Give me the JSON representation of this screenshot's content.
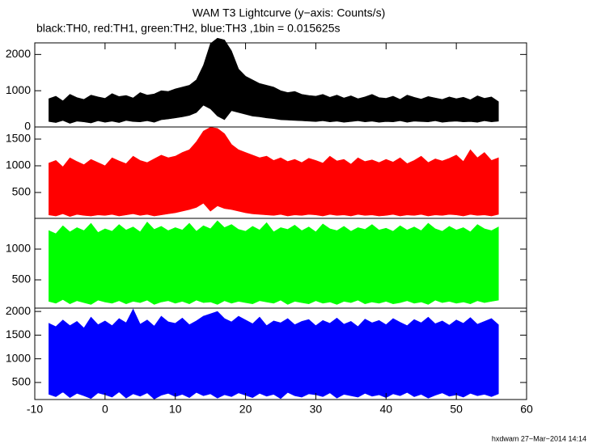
{
  "chart_data": [
    {
      "type": "band",
      "title": "WAM T3 Lightcurve (y−axis: Counts/s)",
      "subtitle": "black:TH0, red:TH1, green:TH2, blue:TH3 ,1bin = 0.015625s",
      "color": "#000000",
      "ylim": [
        0,
        2320
      ],
      "yticks": [
        0,
        1000,
        2000
      ],
      "x": [
        -8,
        -7,
        -6,
        -5,
        -4,
        -3,
        -2,
        -1,
        0,
        1,
        2,
        3,
        4,
        5,
        6,
        7,
        8,
        9,
        10,
        11,
        12,
        13,
        14,
        15,
        16,
        17,
        18,
        19,
        20,
        21,
        22,
        23,
        24,
        25,
        26,
        27,
        28,
        29,
        30,
        31,
        32,
        33,
        34,
        35,
        36,
        37,
        38,
        39,
        40,
        41,
        42,
        43,
        44,
        45,
        46,
        47,
        48,
        49,
        50,
        51,
        52,
        53,
        54,
        55,
        56
      ],
      "high": [
        780,
        850,
        720,
        900,
        810,
        760,
        880,
        830,
        790,
        920,
        840,
        870,
        800,
        950,
        880,
        910,
        1000,
        980,
        1050,
        1100,
        1150,
        1300,
        1700,
        2300,
        2450,
        2400,
        2100,
        1600,
        1400,
        1300,
        1200,
        1150,
        1100,
        1000,
        950,
        980,
        900,
        870,
        850,
        900,
        820,
        880,
        800,
        860,
        780,
        830,
        900,
        810,
        790,
        850,
        760,
        880,
        820,
        770,
        840,
        800,
        760,
        830,
        780,
        820,
        750,
        860,
        790,
        830,
        700
      ],
      "low": [
        150,
        120,
        180,
        100,
        160,
        140,
        110,
        170,
        130,
        160,
        120,
        180,
        150,
        140,
        170,
        130,
        200,
        220,
        250,
        280,
        320,
        400,
        600,
        500,
        300,
        200,
        450,
        400,
        350,
        300,
        280,
        250,
        230,
        200,
        190,
        180,
        170,
        160,
        150,
        170,
        140,
        160,
        130,
        150,
        170,
        140,
        160,
        130,
        150,
        140,
        170,
        130,
        160,
        150,
        140,
        170,
        130,
        150,
        160,
        140,
        150,
        130,
        170,
        140,
        160
      ]
    },
    {
      "type": "band",
      "color": "#ff0000",
      "ylim": [
        15,
        1727
      ],
      "yticks": [
        500,
        1000,
        1500
      ],
      "x": [
        -8,
        -7,
        -6,
        -5,
        -4,
        -3,
        -2,
        -1,
        0,
        1,
        2,
        3,
        4,
        5,
        6,
        7,
        8,
        9,
        10,
        11,
        12,
        13,
        14,
        15,
        16,
        17,
        18,
        19,
        20,
        21,
        22,
        23,
        24,
        25,
        26,
        27,
        28,
        29,
        30,
        31,
        32,
        33,
        34,
        35,
        36,
        37,
        38,
        39,
        40,
        41,
        42,
        43,
        44,
        45,
        46,
        47,
        48,
        49,
        50,
        51,
        52,
        53,
        54,
        55,
        56
      ],
      "high": [
        1050,
        1100,
        980,
        1150,
        1080,
        1020,
        1120,
        1060,
        1000,
        1150,
        1090,
        1040,
        1180,
        1100,
        1060,
        1130,
        1200,
        1150,
        1180,
        1250,
        1300,
        1450,
        1650,
        1720,
        1700,
        1600,
        1400,
        1300,
        1250,
        1200,
        1150,
        1180,
        1100,
        1150,
        1080,
        1120,
        1060,
        1140,
        1100,
        1050,
        1180,
        1090,
        1120,
        1030,
        1150,
        1080,
        1110,
        1060,
        1120,
        1070,
        1150,
        1040,
        1100,
        1180,
        1060,
        1130,
        1090,
        1140,
        1200,
        1080,
        1300,
        1150,
        1250,
        1100,
        1150
      ],
      "low": [
        80,
        60,
        100,
        50,
        90,
        70,
        60,
        80,
        70,
        90,
        60,
        80,
        100,
        70,
        90,
        60,
        80,
        100,
        120,
        150,
        180,
        220,
        300,
        150,
        250,
        200,
        180,
        150,
        120,
        100,
        90,
        80,
        70,
        90,
        60,
        80,
        70,
        90,
        80,
        60,
        90,
        70,
        80,
        60,
        90,
        70,
        80,
        60,
        70,
        90,
        60,
        80,
        70,
        90,
        60,
        80,
        70,
        90,
        80,
        60,
        90,
        70,
        80,
        60,
        90
      ]
    },
    {
      "type": "band",
      "color": "#00ff00",
      "ylim": [
        40,
        1500
      ],
      "yticks": [
        500,
        1000
      ],
      "x": [
        -8,
        -7,
        -6,
        -5,
        -4,
        -3,
        -2,
        -1,
        0,
        1,
        2,
        3,
        4,
        5,
        6,
        7,
        8,
        9,
        10,
        11,
        12,
        13,
        14,
        15,
        16,
        17,
        18,
        19,
        20,
        21,
        22,
        23,
        24,
        25,
        26,
        27,
        28,
        29,
        30,
        31,
        32,
        33,
        34,
        35,
        36,
        37,
        38,
        39,
        40,
        41,
        42,
        43,
        44,
        45,
        46,
        47,
        48,
        49,
        50,
        51,
        52,
        53,
        54,
        55,
        56
      ],
      "high": [
        1300,
        1250,
        1380,
        1280,
        1350,
        1300,
        1420,
        1270,
        1330,
        1290,
        1400,
        1310,
        1360,
        1280,
        1440,
        1320,
        1370,
        1300,
        1350,
        1310,
        1420,
        1290,
        1380,
        1330,
        1460,
        1350,
        1400,
        1320,
        1290,
        1370,
        1310,
        1430,
        1280,
        1350,
        1320,
        1390,
        1300,
        1360,
        1280,
        1410,
        1330,
        1300,
        1370,
        1290,
        1350,
        1320,
        1400,
        1310,
        1340,
        1290,
        1380,
        1310,
        1360,
        1300,
        1420,
        1330,
        1290,
        1370,
        1310,
        1350,
        1280,
        1400,
        1330,
        1300,
        1360
      ],
      "low": [
        150,
        120,
        180,
        110,
        160,
        130,
        100,
        170,
        140,
        120,
        160,
        110,
        150,
        130,
        170,
        100,
        140,
        160,
        120,
        150,
        110,
        170,
        130,
        140,
        100,
        160,
        120,
        150,
        130,
        110,
        160,
        140,
        120,
        170,
        100,
        150,
        130,
        110,
        160,
        120,
        140,
        100,
        150,
        130,
        170,
        110,
        140,
        120,
        150,
        110,
        130,
        160,
        120,
        140,
        100,
        170,
        130,
        150,
        120,
        140,
        110,
        160,
        130,
        150,
        170
      ]
    },
    {
      "type": "band",
      "color": "#0000ff",
      "ylim": [
        140,
        2070
      ],
      "yticks": [
        500,
        1000,
        1500,
        2000
      ],
      "xlim": [
        -10,
        60
      ],
      "xticks": [
        -10,
        0,
        10,
        20,
        30,
        40,
        50,
        60
      ],
      "x": [
        -8,
        -7,
        -6,
        -5,
        -4,
        -3,
        -2,
        -1,
        0,
        1,
        2,
        3,
        4,
        5,
        6,
        7,
        8,
        9,
        10,
        11,
        12,
        13,
        14,
        15,
        16,
        17,
        18,
        19,
        20,
        21,
        22,
        23,
        24,
        25,
        26,
        27,
        28,
        29,
        30,
        31,
        32,
        33,
        34,
        35,
        36,
        37,
        38,
        39,
        40,
        41,
        42,
        43,
        44,
        45,
        46,
        47,
        48,
        49,
        50,
        51,
        52,
        53,
        54,
        55,
        56
      ],
      "high": [
        1750,
        1680,
        1820,
        1700,
        1790,
        1650,
        1880,
        1720,
        1800,
        1700,
        1850,
        1760,
        2050,
        1730,
        1820,
        1690,
        1900,
        1780,
        1750,
        1860,
        1720,
        1800,
        1900,
        1950,
        2000,
        1850,
        1780,
        1900,
        1820,
        1740,
        1880,
        1700,
        1800,
        1760,
        1850,
        1720,
        1790,
        1830,
        1700,
        1810,
        1750,
        1860,
        1730,
        1790,
        1680,
        1840,
        1760,
        1810,
        1720,
        1850,
        1770,
        1700,
        1830,
        1760,
        1880,
        1740,
        1800,
        1710,
        1820,
        1750,
        1870,
        1730,
        1790,
        1850,
        1720
      ],
      "low": [
        250,
        200,
        300,
        180,
        270,
        220,
        160,
        280,
        240,
        190,
        300,
        170,
        260,
        210,
        280,
        150,
        230,
        270,
        200,
        250,
        180,
        290,
        220,
        260,
        170,
        240,
        200,
        280,
        230,
        180,
        270,
        210,
        250,
        160,
        290,
        220,
        190,
        260,
        240,
        200,
        280,
        170,
        250,
        220,
        190,
        270,
        210,
        240,
        180,
        260,
        220,
        290,
        200,
        250,
        170,
        230,
        280,
        210,
        240,
        190,
        270,
        220,
        250,
        200,
        260
      ]
    }
  ],
  "footer": "hxdwam 27−Mar−2014 14:14"
}
